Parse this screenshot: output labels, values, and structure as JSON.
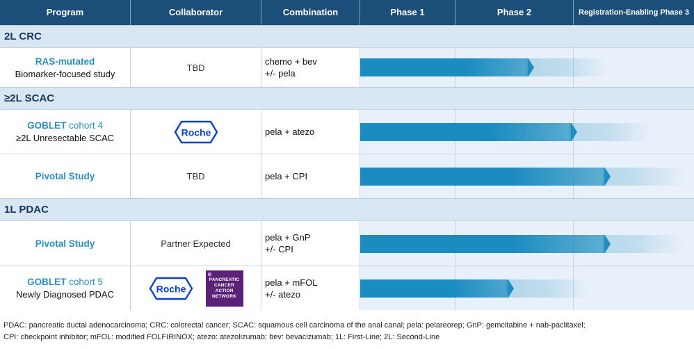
{
  "header": {
    "program": "Program",
    "collaborator": "Collaborator",
    "combination": "Combination",
    "phase1": "Phase 1",
    "phase2": "Phase 2",
    "phase3": "Registration-Enabling Phase 3"
  },
  "sections": {
    "crc": "2L CRC",
    "scac": "≥2L SCAC",
    "pdac": "1L PDAC"
  },
  "rows": {
    "ras": {
      "title": "RAS-mutated",
      "subtitle": "Biomarker-focused study",
      "collaborator": "TBD",
      "combo_line1": "chemo + bev",
      "combo_line2": "+/- pela",
      "progress": 0.52
    },
    "goblet4": {
      "title_bold": "GOBLET",
      "title_light": "cohort 4",
      "subtitle": "≥2L Unresectable SCAC",
      "collaborator_logo": "Roche",
      "combo_line1": "pela + atezo",
      "progress": 0.65
    },
    "pivotal_scac": {
      "title": "Pivotal Study",
      "collaborator": "TBD",
      "combo_line1": "pela + CPI",
      "progress": 0.75
    },
    "pivotal_pdac": {
      "title": "Pivotal Study",
      "collaborator": "Partner Expected",
      "combo_line1": "pela + GnP",
      "combo_line2": "+/- CPI",
      "progress": 0.75
    },
    "goblet5": {
      "title_bold": "GOBLET",
      "title_light": "cohort 5",
      "subtitle": "Newly Diagnosed PDAC",
      "collaborator_logo": "Roche",
      "pcan_lines": [
        "PANCREATIC",
        "CANCER",
        "ACTION",
        "NETWORK"
      ],
      "combo_line1": "pela + mFOL",
      "combo_line2": "+/- atezo",
      "progress": 0.46
    }
  },
  "footnote": {
    "line1": "PDAC: pancreatic ductal adenocarcinoma; CRC: colorectal cancer; SCAC: squamous cell carcinoma of the anal canal; pela: pelareorep; GnP: gemcitabine + nab-paclitaxel;",
    "line2": "CPI: checkpoint inhibitor; mFOL: modified FOLFIRINOX; atezo: atezolizumab; bev: bevacizumab; 1L: First-Line; 2L: Second-Line"
  },
  "colors": {
    "header_bg": "#1b4f7a",
    "section_bg": "#d9e6f4",
    "bar_dark": "#1a8cbf",
    "program_title": "#2b8fc1",
    "roche_blue": "#0b41cd",
    "pcan_purple": "#5b2178"
  }
}
